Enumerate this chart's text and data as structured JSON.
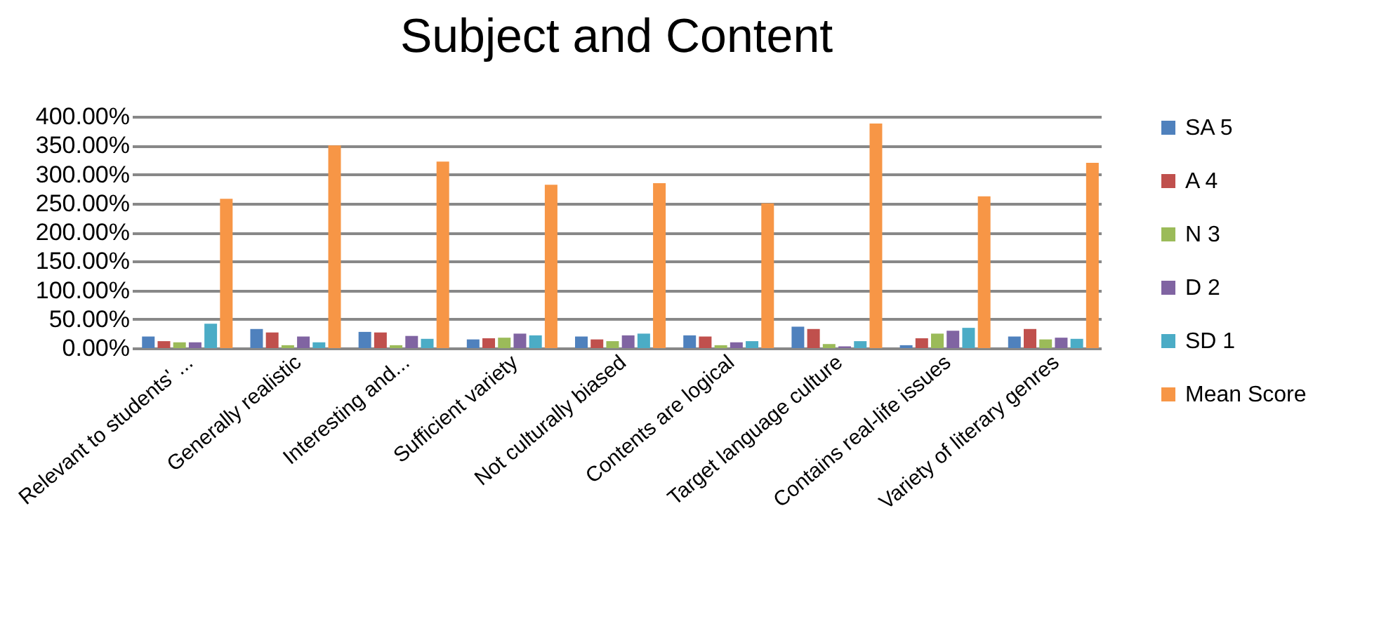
{
  "chart_data": {
    "type": "bar",
    "title": "Subject and Content",
    "categories": [
      "Relevant to students' ...",
      "Generally realistic",
      "Interesting and...",
      "Sufficient variety",
      "Not culturally biased",
      "Contents are logical",
      "Target language culture",
      "Contains real-life issues",
      "Variety of literary genres"
    ],
    "series": [
      {
        "name": "SA 5",
        "color": "#4f81bd",
        "values": [
          20,
          33,
          28,
          15,
          20,
          22,
          37,
          5,
          20
        ]
      },
      {
        "name": "A 4",
        "color": "#c0504d",
        "values": [
          12,
          27,
          27,
          17,
          15,
          20,
          33,
          17,
          33
        ]
      },
      {
        "name": "N 3",
        "color": "#9bbb59",
        "values": [
          10,
          5,
          5,
          18,
          12,
          5,
          7,
          25,
          15
        ]
      },
      {
        "name": "D 2",
        "color": "#8064a2",
        "values": [
          10,
          20,
          21,
          25,
          22,
          10,
          3,
          30,
          18
        ]
      },
      {
        "name": "SD 1",
        "color": "#4bacc6",
        "values": [
          42,
          10,
          16,
          22,
          25,
          12,
          12,
          35,
          16
        ]
      },
      {
        "name": "Mean Score",
        "color": "#f79646",
        "values": [
          258,
          350,
          322,
          282,
          285,
          250,
          388,
          262,
          320
        ]
      }
    ],
    "ylim": [
      0,
      400
    ],
    "yticks": [
      {
        "value": 0,
        "label": "0.00%"
      },
      {
        "value": 50,
        "label": "50.00%"
      },
      {
        "value": 100,
        "label": "100.00%"
      },
      {
        "value": 150,
        "label": "150.00%"
      },
      {
        "value": 200,
        "label": "200.00%"
      },
      {
        "value": 250,
        "label": "250.00%"
      },
      {
        "value": 300,
        "label": "300.00%"
      },
      {
        "value": 350,
        "label": "350.00%"
      },
      {
        "value": 400,
        "label": "400.00%"
      }
    ],
    "grid": "y",
    "legend": "right"
  }
}
